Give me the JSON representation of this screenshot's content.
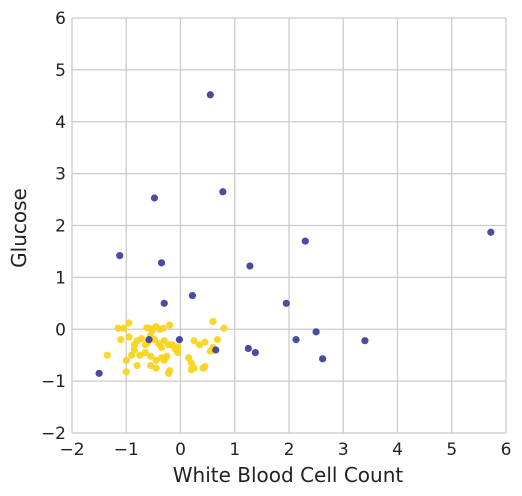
{
  "chart_data": {
    "type": "scatter",
    "title": "",
    "xlabel": "White Blood Cell Count",
    "ylabel": "Glucose",
    "xlim": [
      -2,
      6
    ],
    "ylim": [
      -2,
      6
    ],
    "x_ticks": [
      -2,
      -1,
      0,
      1,
      2,
      3,
      4,
      5,
      6
    ],
    "y_ticks": [
      -2,
      -1,
      0,
      1,
      2,
      3,
      4,
      5,
      6
    ],
    "x_tick_labels": [
      "−2",
      "−1",
      "0",
      "1",
      "2",
      "3",
      "4",
      "5",
      "6"
    ],
    "y_tick_labels": [
      "−2",
      "−1",
      "0",
      "1",
      "2",
      "3",
      "4",
      "5",
      "6"
    ],
    "grid": true,
    "background": "#ffffff",
    "grid_color": "#cbcbcb",
    "series": [
      {
        "color": "#f9d21c",
        "points": [
          [
            -1.15,
            0.02
          ],
          [
            -1.05,
            0.02
          ],
          [
            -0.95,
            0.12
          ],
          [
            -0.62,
            0.03
          ],
          [
            -0.55,
            0.01
          ],
          [
            -0.52,
            -0.02
          ],
          [
            -0.45,
            0.05
          ],
          [
            -0.38,
            0.0
          ],
          [
            -0.32,
            0.02
          ],
          [
            -0.2,
            0.08
          ],
          [
            -1.1,
            -0.2
          ],
          [
            -0.95,
            -0.15
          ],
          [
            -0.8,
            -0.22
          ],
          [
            -0.72,
            -0.18
          ],
          [
            -0.6,
            -0.25
          ],
          [
            -0.55,
            -0.12
          ],
          [
            -0.48,
            -0.2
          ],
          [
            -0.4,
            -0.28
          ],
          [
            -0.3,
            -0.22
          ],
          [
            -0.22,
            -0.3
          ],
          [
            -0.15,
            -0.3
          ],
          [
            -0.05,
            -0.35
          ],
          [
            0.25,
            -0.22
          ],
          [
            0.35,
            -0.3
          ],
          [
            0.6,
            -0.35
          ],
          [
            0.68,
            -0.2
          ],
          [
            0.8,
            0.02
          ],
          [
            0.6,
            0.15
          ],
          [
            -1.35,
            -0.5
          ],
          [
            -1.0,
            -0.6
          ],
          [
            -0.9,
            -0.5
          ],
          [
            -0.85,
            -0.4
          ],
          [
            -0.75,
            -0.5
          ],
          [
            -0.65,
            -0.45
          ],
          [
            -0.55,
            -0.52
          ],
          [
            -0.45,
            -0.6
          ],
          [
            -0.35,
            -0.55
          ],
          [
            -0.3,
            -0.6
          ],
          [
            -0.25,
            -0.52
          ],
          [
            -0.45,
            -0.75
          ],
          [
            -0.55,
            -0.7
          ],
          [
            -0.8,
            -0.7
          ],
          [
            -1.0,
            -0.82
          ],
          [
            -0.2,
            -0.8
          ],
          [
            -0.22,
            -0.85
          ],
          [
            0.15,
            -0.55
          ],
          [
            0.2,
            -0.65
          ],
          [
            0.25,
            -0.75
          ],
          [
            0.2,
            -0.78
          ],
          [
            0.42,
            -0.75
          ],
          [
            0.45,
            -0.72
          ],
          [
            -0.05,
            -0.45
          ],
          [
            -0.1,
            -0.38
          ],
          [
            -0.65,
            -0.3
          ],
          [
            0.55,
            -0.42
          ],
          [
            0.45,
            -0.25
          ],
          [
            -0.85,
            -0.3
          ],
          [
            -0.35,
            -0.35
          ]
        ]
      },
      {
        "color": "#3a3d98",
        "points": [
          [
            0.55,
            4.52
          ],
          [
            -0.48,
            2.53
          ],
          [
            0.78,
            2.65
          ],
          [
            -1.12,
            1.42
          ],
          [
            -0.35,
            1.28
          ],
          [
            2.3,
            1.7
          ],
          [
            1.28,
            1.22
          ],
          [
            5.72,
            1.87
          ],
          [
            -0.3,
            0.5
          ],
          [
            0.22,
            0.65
          ],
          [
            1.95,
            0.5
          ],
          [
            -0.58,
            -0.2
          ],
          [
            -0.02,
            -0.2
          ],
          [
            0.65,
            -0.4
          ],
          [
            1.25,
            -0.37
          ],
          [
            1.38,
            -0.45
          ],
          [
            2.13,
            -0.2
          ],
          [
            2.5,
            -0.05
          ],
          [
            2.62,
            -0.57
          ],
          [
            3.4,
            -0.22
          ],
          [
            -1.5,
            -0.85
          ]
        ]
      }
    ]
  }
}
